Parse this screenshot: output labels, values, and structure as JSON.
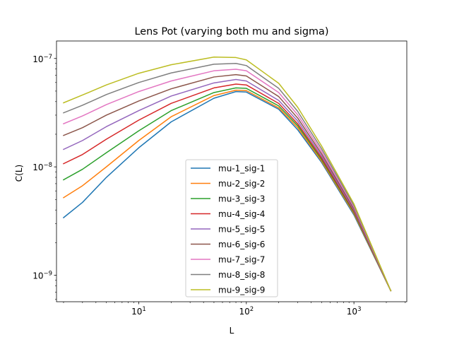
{
  "chart_data": {
    "type": "line",
    "title": "Lens Pot (varying both mu and sigma)",
    "xlabel": "L",
    "ylabel": "C(L)",
    "xscale": "log",
    "yscale": "log",
    "xlim": [
      1.72,
      3100
    ],
    "ylim": [
      5.7e-10,
      1.45e-07
    ],
    "grid": false,
    "legend_position": "lower-center",
    "x_ticks": [
      {
        "value": 10,
        "base": "10",
        "exp": "1"
      },
      {
        "value": 100,
        "base": "10",
        "exp": "2"
      },
      {
        "value": 1000,
        "base": "10",
        "exp": "3"
      }
    ],
    "y_ticks": [
      {
        "value": 1e-09,
        "base": "10",
        "exp": "−9"
      },
      {
        "value": 1e-08,
        "base": "10",
        "exp": "−8"
      },
      {
        "value": 1e-07,
        "base": "10",
        "exp": "−7"
      }
    ],
    "x": [
      2,
      3,
      5,
      10,
      20,
      50,
      80,
      100,
      200,
      300,
      500,
      1000,
      2200
    ],
    "series": [
      {
        "name": "mu-1_sig-1",
        "color": "#1f77b4",
        "values": [
          3.4e-09,
          4.7e-09,
          8e-09,
          1.5e-08,
          2.6e-08,
          4.3e-08,
          4.95e-08,
          4.9e-08,
          3.4e-08,
          2.2e-08,
          1.1e-08,
          3.6e-09,
          7.2e-10
        ]
      },
      {
        "name": "mu-2_sig-2",
        "color": "#ff7f0e",
        "values": [
          5.2e-09,
          6.7e-09,
          1e-08,
          1.75e-08,
          2.9e-08,
          4.55e-08,
          5.1e-08,
          5.05e-08,
          3.5e-08,
          2.3e-08,
          1.13e-08,
          3.7e-09,
          7.2e-10
        ]
      },
      {
        "name": "mu-3_sig-3",
        "color": "#2ca02c",
        "values": [
          7.6e-09,
          9.5e-09,
          1.35e-08,
          2.15e-08,
          3.3e-08,
          4.85e-08,
          5.35e-08,
          5.3e-08,
          3.65e-08,
          2.4e-08,
          1.17e-08,
          3.8e-09,
          7.2e-10
        ]
      },
      {
        "name": "mu-4_sig-4",
        "color": "#d62728",
        "values": [
          1.07e-08,
          1.3e-08,
          1.8e-08,
          2.7e-08,
          3.85e-08,
          5.35e-08,
          5.8e-08,
          5.7e-08,
          3.85e-08,
          2.5e-08,
          1.21e-08,
          3.9e-09,
          7.2e-10
        ]
      },
      {
        "name": "mu-5_sig-5",
        "color": "#9467bd",
        "values": [
          1.45e-08,
          1.75e-08,
          2.35e-08,
          3.3e-08,
          4.5e-08,
          5.95e-08,
          6.4e-08,
          6.2e-08,
          4.1e-08,
          2.65e-08,
          1.26e-08,
          4e-09,
          7.2e-10
        ]
      },
      {
        "name": "mu-6_sig-6",
        "color": "#8c564b",
        "values": [
          1.95e-08,
          2.3e-08,
          3e-08,
          4.05e-08,
          5.25e-08,
          6.75e-08,
          7.1e-08,
          6.9e-08,
          4.45e-08,
          2.82e-08,
          1.32e-08,
          4.1e-09,
          7.2e-10
        ]
      },
      {
        "name": "mu-7_sig-7",
        "color": "#e377c2",
        "values": [
          2.5e-08,
          2.95e-08,
          3.75e-08,
          4.95e-08,
          6.2e-08,
          7.7e-08,
          7.95e-08,
          7.7e-08,
          4.85e-08,
          3.02e-08,
          1.39e-08,
          4.25e-09,
          7.2e-10
        ]
      },
      {
        "name": "mu-8_sig-8",
        "color": "#7f7f7f",
        "values": [
          3.15e-08,
          3.7e-08,
          4.65e-08,
          6e-08,
          7.35e-08,
          8.85e-08,
          9e-08,
          8.6e-08,
          5.3e-08,
          3.25e-08,
          1.47e-08,
          4.4e-09,
          7.2e-10
        ]
      },
      {
        "name": "mu-9_sig-9",
        "color": "#bcbd22",
        "values": [
          3.9e-08,
          4.6e-08,
          5.7e-08,
          7.3e-08,
          8.75e-08,
          1.03e-07,
          1.02e-07,
          9.7e-08,
          5.9e-08,
          3.55e-08,
          1.56e-08,
          4.55e-09,
          7.2e-10
        ]
      }
    ]
  }
}
